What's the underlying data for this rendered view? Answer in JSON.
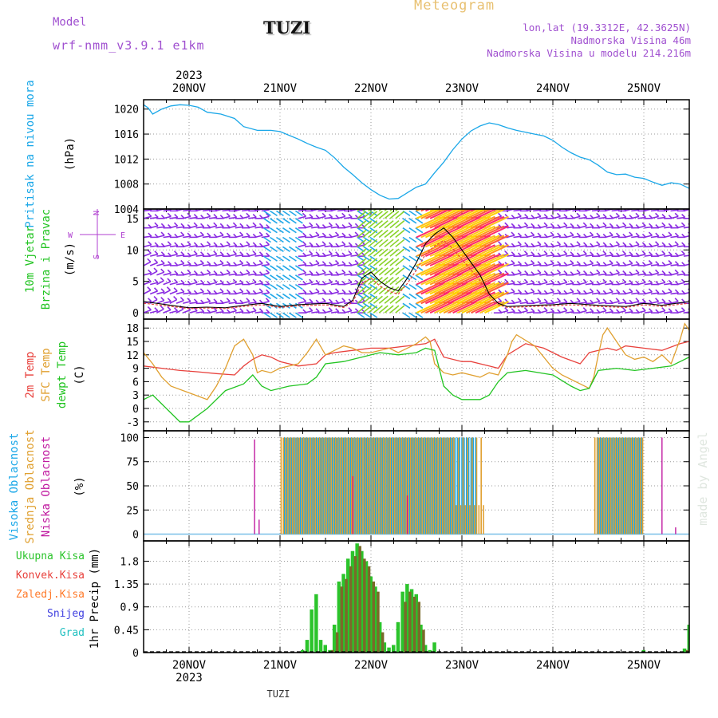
{
  "header": {
    "model_label": "Model",
    "model_name": "wrf-nmm_v3.9.1 e1km",
    "station": "TUZI",
    "meteogram_title": "Meteogram",
    "coords": "lon,lat (19.3312E, 42.3625N)",
    "altitude": "Nadmorska Visina 46m",
    "model_altitude": "Nadmorska Visina u modelu 214.216m",
    "footer_station": "TUZI",
    "watermark": "made by Angel"
  },
  "time_axis": {
    "year": "2023",
    "day_labels": [
      "20NOV",
      "21NOV",
      "22NOV",
      "23NOV",
      "24NOV",
      "25NOV"
    ],
    "start_day": -0.5,
    "end_day": 5.5
  },
  "colors": {
    "pressure": "#1aa7e8",
    "temp2m": "#e8413c",
    "sfc_temp": "#e0a030",
    "dewpt": "#22c422",
    "high_cloud": "#1aa7e8",
    "mid_cloud": "#e0a030",
    "low_cloud": "#c01aa0",
    "total_precip": "#2bc42b",
    "conv_precip": "#e8413c",
    "frozen_precip": "#ff7a2a",
    "snow": "#4040e0",
    "hail": "#20c0c0",
    "wind_label": "#22c422",
    "wind_dir_label": "#b040d0"
  },
  "chart_data": [
    {
      "type": "line",
      "ylabel": "Pritisak na nivou mora",
      "unit": "(hPa)",
      "yticks": [
        "1020",
        "1016",
        "1012",
        "1008",
        "1004"
      ],
      "ylim": [
        1004,
        1021.5
      ],
      "series": [
        {
          "x": [
            -0.5,
            -0.45,
            -0.4,
            -0.3,
            -0.2,
            -0.1,
            0.0,
            0.1,
            0.2,
            0.35,
            0.5,
            0.6,
            0.75,
            0.9,
            1.0,
            1.1,
            1.2,
            1.3,
            1.4,
            1.5,
            1.6,
            1.7,
            1.8,
            1.9,
            2.0,
            2.1,
            2.2,
            2.3,
            2.4,
            2.5,
            2.6,
            2.7,
            2.8,
            2.9,
            3.0,
            3.1,
            3.2,
            3.3,
            3.4,
            3.5,
            3.6,
            3.7,
            3.8,
            3.9,
            4.0,
            4.1,
            4.2,
            4.3,
            4.4,
            4.5,
            4.6,
            4.7,
            4.8,
            4.9,
            5.0,
            5.1,
            5.2,
            5.3,
            5.4,
            5.5
          ],
          "y": [
            1020.7,
            1020.2,
            1019.2,
            1020.0,
            1020.5,
            1020.7,
            1020.6,
            1020.3,
            1019.5,
            1019.2,
            1018.5,
            1017.2,
            1016.6,
            1016.6,
            1016.4,
            1015.8,
            1015.2,
            1014.5,
            1013.9,
            1013.4,
            1012.2,
            1010.7,
            1009.5,
            1008.2,
            1007.1,
            1006.2,
            1005.6,
            1005.7,
            1006.6,
            1007.5,
            1008.0,
            1009.8,
            1011.5,
            1013.5,
            1015.2,
            1016.5,
            1017.3,
            1017.8,
            1017.5,
            1017.0,
            1016.6,
            1016.3,
            1016.0,
            1015.7,
            1015.0,
            1013.9,
            1013.0,
            1012.3,
            1011.9,
            1011.0,
            1009.9,
            1009.5,
            1009.6,
            1009.1,
            1008.9,
            1008.3,
            1007.8,
            1008.2,
            1008.0,
            1007.3
          ]
        }
      ]
    },
    {
      "type": "line",
      "ylabel": "10m Vjetar",
      "ylabel2": "Brzina i Pravac",
      "unit": "(m/s)",
      "compass": {
        "w": "W",
        "e": "E",
        "n": "N",
        "s": "S"
      },
      "yticks": [
        "15",
        "10",
        "5",
        "0"
      ],
      "ylim": [
        -1,
        16.5
      ],
      "series": [
        {
          "x": [
            -0.5,
            -0.2,
            0.0,
            0.2,
            0.4,
            0.6,
            0.8,
            1.0,
            1.2,
            1.5,
            1.7,
            1.8,
            1.9,
            2.0,
            2.1,
            2.2,
            2.3,
            2.4,
            2.5,
            2.6,
            2.7,
            2.8,
            2.9,
            3.0,
            3.1,
            3.2,
            3.3,
            3.4,
            3.5,
            3.8,
            4.0,
            4.2,
            4.5,
            4.8,
            5.0,
            5.2,
            5.5
          ],
          "y": [
            1.8,
            1.2,
            0.8,
            0.9,
            0.8,
            1.2,
            1.5,
            1.0,
            1.3,
            1.5,
            1.0,
            2.0,
            5.5,
            6.5,
            5.0,
            4.0,
            3.5,
            5.5,
            8.0,
            11.0,
            12.5,
            13.5,
            12.0,
            10.0,
            8.0,
            6.0,
            3.0,
            1.5,
            1.0,
            1.2,
            1.3,
            1.5,
            1.2,
            1.0,
            1.5,
            1.2,
            1.8
          ]
        }
      ]
    },
    {
      "type": "line",
      "ylabel_parts": [
        "2m Temp",
        "SFC Temp",
        "dewpt Temp"
      ],
      "unit": "(C)",
      "yticks": [
        "18",
        "15",
        "12",
        "9",
        "6",
        "3",
        "0",
        "-3"
      ],
      "ylim": [
        -5,
        20
      ],
      "series": [
        {
          "name": "2m Temp",
          "x": [
            -0.5,
            -0.3,
            -0.1,
            0.1,
            0.3,
            0.5,
            0.6,
            0.7,
            0.8,
            0.9,
            1.0,
            1.2,
            1.4,
            1.5,
            1.6,
            1.8,
            2.0,
            2.2,
            2.4,
            2.6,
            2.7,
            2.8,
            3.0,
            3.1,
            3.2,
            3.3,
            3.4,
            3.5,
            3.7,
            3.9,
            4.1,
            4.3,
            4.4,
            4.5,
            4.6,
            4.7,
            4.8,
            5.0,
            5.2,
            5.4,
            5.5
          ],
          "y": [
            9.5,
            9.0,
            8.5,
            8.2,
            7.8,
            7.5,
            9.5,
            11.0,
            12.0,
            11.5,
            10.5,
            9.5,
            10.0,
            12.0,
            12.5,
            13.0,
            13.5,
            13.5,
            14.0,
            14.5,
            15.5,
            11.5,
            10.5,
            10.5,
            10.0,
            9.5,
            9.0,
            12.0,
            14.5,
            13.5,
            11.5,
            10.0,
            12.5,
            13.0,
            13.5,
            13.0,
            14.0,
            13.5,
            13.0,
            14.5,
            15.0
          ]
        },
        {
          "name": "SFC Temp",
          "x": [
            -0.5,
            -0.4,
            -0.3,
            -0.2,
            0.0,
            0.2,
            0.3,
            0.4,
            0.5,
            0.6,
            0.7,
            0.75,
            0.8,
            0.9,
            1.0,
            1.1,
            1.2,
            1.3,
            1.4,
            1.5,
            1.6,
            1.7,
            1.8,
            1.9,
            2.0,
            2.1,
            2.2,
            2.3,
            2.4,
            2.5,
            2.6,
            2.65,
            2.7,
            2.8,
            2.9,
            3.0,
            3.1,
            3.2,
            3.3,
            3.4,
            3.5,
            3.55,
            3.6,
            3.8,
            4.0,
            4.1,
            4.2,
            4.3,
            4.4,
            4.45,
            4.5,
            4.55,
            4.6,
            4.7,
            4.8,
            4.9,
            5.0,
            5.1,
            5.2,
            5.3,
            5.4,
            5.45,
            5.5
          ],
          "y": [
            12.5,
            10.0,
            7.0,
            5.0,
            3.5,
            2.0,
            5.0,
            9.0,
            14.0,
            15.5,
            12.0,
            8.0,
            8.5,
            8.0,
            9.0,
            9.5,
            10.0,
            12.5,
            15.5,
            12.0,
            13.0,
            14.0,
            13.5,
            12.5,
            12.5,
            13.0,
            13.5,
            12.5,
            13.5,
            14.5,
            16.0,
            15.0,
            10.0,
            8.0,
            7.5,
            8.0,
            7.5,
            7.0,
            8.0,
            7.5,
            12.0,
            15.0,
            16.5,
            14.0,
            9.0,
            7.5,
            6.5,
            5.5,
            4.5,
            7.0,
            12.0,
            16.5,
            18.0,
            15.0,
            12.0,
            11.0,
            11.5,
            10.5,
            12.0,
            10.0,
            15.5,
            19.0,
            17.5
          ]
        },
        {
          "name": "dewpt Temp",
          "x": [
            -0.5,
            -0.4,
            -0.3,
            -0.2,
            -0.1,
            0.0,
            0.2,
            0.4,
            0.6,
            0.7,
            0.8,
            0.9,
            1.0,
            1.1,
            1.3,
            1.4,
            1.5,
            1.7,
            1.9,
            2.1,
            2.3,
            2.5,
            2.6,
            2.7,
            2.8,
            2.9,
            3.0,
            3.2,
            3.3,
            3.4,
            3.5,
            3.7,
            4.0,
            4.2,
            4.3,
            4.4,
            4.5,
            4.7,
            4.9,
            5.1,
            5.3,
            5.5
          ],
          "y": [
            2.0,
            3.0,
            1.0,
            -1.0,
            -3.0,
            -3.0,
            0.0,
            4.0,
            5.5,
            7.5,
            5.0,
            4.0,
            4.5,
            5.0,
            5.5,
            7.0,
            10.0,
            10.5,
            11.5,
            12.5,
            12.0,
            12.5,
            13.5,
            13.0,
            5.0,
            3.0,
            2.0,
            2.0,
            3.0,
            6.0,
            8.0,
            8.5,
            7.5,
            5.0,
            4.0,
            4.5,
            8.5,
            9.0,
            8.5,
            9.0,
            9.5,
            11.5
          ]
        }
      ]
    },
    {
      "type": "bar",
      "ylabel_parts": [
        "Visoka Oblacnost",
        "Srednja Oblacnost",
        "Niska Oblacnost"
      ],
      "unit": "(%)",
      "yticks": [
        "100",
        "75",
        "50",
        "25",
        "0"
      ],
      "ylim": [
        -7,
        107
      ],
      "series": [
        {
          "name": "Visoka Oblacnost",
          "ranges": [
            [
              1.05,
              3.15
            ],
            [
              4.5,
              5.0
            ]
          ],
          "value": 100
        },
        {
          "name": "Srednja Oblacnost",
          "ranges": [
            [
              1.0,
              3.25
            ],
            [
              4.45,
              5.0
            ]
          ],
          "value": 100
        },
        {
          "name": "Niska Oblacnost",
          "points": [
            [
              0.72,
              98
            ],
            [
              0.77,
              15
            ],
            [
              1.8,
              60
            ],
            [
              2.4,
              40
            ],
            [
              5.2,
              100
            ],
            [
              5.35,
              7
            ]
          ]
        }
      ]
    },
    {
      "type": "bar",
      "ylabel": "1hr Precip (mm)",
      "legend": [
        "Ukupna Kisa",
        "Konvek.Kisa",
        "Zaledj.Kisa",
        "Snijeg",
        "Grad"
      ],
      "yticks": [
        "1.8",
        "1.35",
        "0.9",
        "0.45",
        "0"
      ],
      "ylim": [
        0,
        2.2
      ],
      "series": [
        {
          "name": "Ukupna Kisa",
          "x": [
            1.25,
            1.3,
            1.35,
            1.4,
            1.45,
            1.5,
            1.55,
            1.6,
            1.65,
            1.7,
            1.75,
            1.8,
            1.85,
            1.9,
            1.95,
            2.0,
            2.05,
            2.1,
            2.15,
            2.2,
            2.25,
            2.3,
            2.35,
            2.4,
            2.45,
            2.5,
            2.55,
            2.6,
            2.65,
            2.7,
            5.0,
            5.45,
            5.5
          ],
          "y": [
            0.05,
            0.25,
            0.85,
            1.15,
            0.25,
            0.15,
            0.05,
            0.55,
            1.4,
            1.55,
            1.85,
            2.0,
            2.15,
            2.0,
            1.8,
            1.5,
            1.3,
            0.6,
            0.2,
            0.1,
            0.15,
            0.6,
            1.2,
            1.35,
            1.25,
            1.15,
            0.55,
            0.15,
            0.05,
            0.2,
            0.05,
            0.08,
            0.55
          ]
        },
        {
          "name": "Konvek.Kisa",
          "x": [
            1.55,
            1.6,
            1.65,
            1.7,
            1.75,
            1.8,
            1.85,
            1.9,
            1.95,
            2.0,
            2.05,
            2.1,
            2.35,
            2.4,
            2.45,
            2.5,
            2.55,
            5.45,
            5.5
          ],
          "y": [
            0.05,
            0.4,
            1.3,
            1.45,
            1.7,
            1.9,
            2.1,
            1.85,
            1.7,
            1.4,
            1.2,
            0.4,
            1.0,
            1.2,
            1.1,
            1.0,
            0.45,
            0.05,
            0.35
          ]
        }
      ]
    }
  ]
}
